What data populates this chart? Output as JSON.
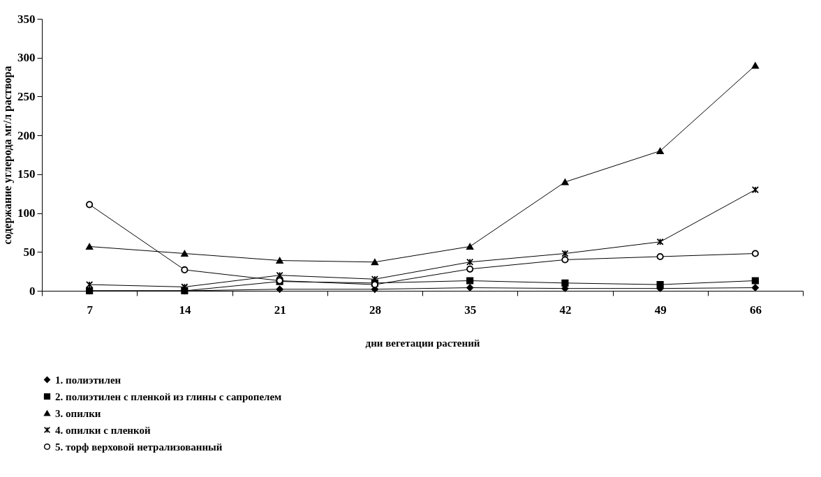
{
  "chart_data": {
    "type": "line",
    "xlabel": "дни вегетации растений",
    "ylabel": "содержание углерода мг/л раствора",
    "categories": [
      "7",
      "14",
      "21",
      "28",
      "35",
      "42",
      "49",
      "66"
    ],
    "ylim": [
      0,
      350
    ],
    "yticks": [
      0,
      50,
      100,
      150,
      200,
      250,
      300,
      350
    ],
    "grid": false,
    "legend": "bottom",
    "series": [
      {
        "name": "1. полиэтилен",
        "color": "#000000",
        "marker": "diamond",
        "values": [
          0,
          0,
          2,
          2,
          4,
          3,
          3,
          4
        ]
      },
      {
        "name": "2. полиэтилен с пленкой из глины с сапропелем",
        "color": "#000000",
        "marker": "square",
        "values": [
          0,
          0,
          12,
          10,
          13,
          10,
          8,
          13
        ]
      },
      {
        "name": "3. опилки",
        "color": "#000000",
        "marker": "triangle",
        "values": [
          57,
          48,
          39,
          37,
          57,
          140,
          180,
          290
        ]
      },
      {
        "name": "4. опилки с пленкой",
        "color": "#000000",
        "marker": "cross",
        "values": [
          8,
          5,
          20,
          15,
          37,
          48,
          63,
          130
        ]
      },
      {
        "name": "5. торф верховой нетрализованный",
        "color": "#000000",
        "marker": "circle",
        "values": [
          111,
          27,
          13,
          8,
          28,
          40,
          44,
          48
        ]
      }
    ]
  }
}
